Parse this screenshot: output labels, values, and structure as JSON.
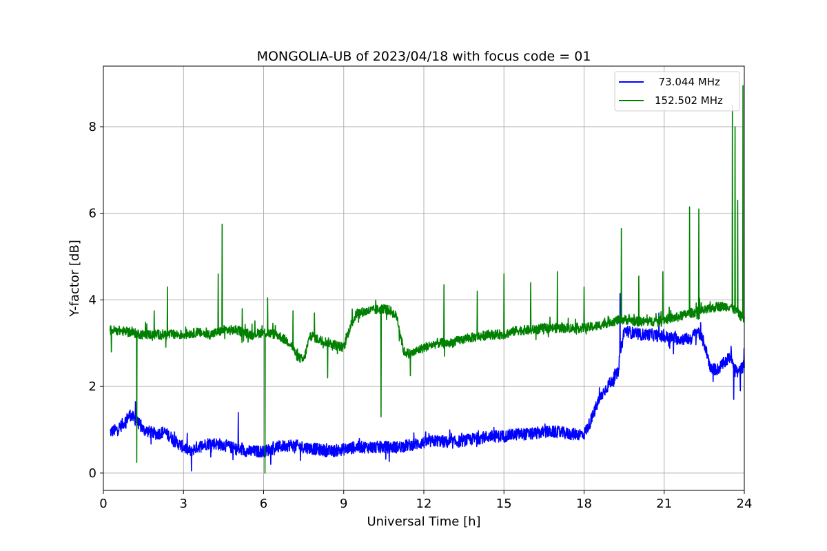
{
  "chart_data": {
    "type": "line",
    "title": "MONGOLIA-UB of 2023/04/18 with focus code = 01",
    "xlabel": "Universal Time [h]",
    "ylabel": "Y-factor [dB]",
    "xlim": [
      0,
      24
    ],
    "ylim": [
      -0.4,
      9.4
    ],
    "xticks": [
      0,
      3,
      6,
      9,
      12,
      15,
      18,
      21,
      24
    ],
    "yticks": [
      0,
      2,
      4,
      6,
      8
    ],
    "xtick_labels": [
      "0",
      "3",
      "6",
      "9",
      "12",
      "15",
      "18",
      "21",
      "24"
    ],
    "ytick_labels": [
      "0",
      "2",
      "4",
      "6",
      "8"
    ],
    "grid": true,
    "legend_position": "top-right",
    "series": [
      {
        "name": "73.044 MHz",
        "legend_label": "  73.044 MHz",
        "color": "#0000ff",
        "x": [
          0.25,
          0.5,
          0.75,
          1.0,
          1.25,
          1.5,
          1.75,
          2.0,
          2.25,
          2.5,
          2.75,
          3.0,
          3.25,
          3.5,
          3.75,
          4.0,
          4.5,
          5.0,
          5.5,
          6.0,
          6.5,
          7.0,
          7.5,
          8.0,
          8.5,
          9.0,
          9.5,
          10.0,
          10.5,
          11.0,
          11.5,
          12.0,
          12.5,
          13.0,
          13.5,
          14.0,
          14.5,
          15.0,
          15.5,
          16.0,
          16.5,
          17.0,
          17.5,
          18.0,
          18.25,
          18.5,
          18.75,
          19.0,
          19.25,
          19.5,
          20.0,
          20.5,
          21.0,
          21.5,
          22.0,
          22.25,
          22.5,
          22.75,
          23.0,
          23.5,
          23.75,
          24.0
        ],
        "values": [
          0.95,
          1.0,
          1.15,
          1.35,
          1.2,
          1.0,
          0.95,
          0.9,
          0.95,
          0.85,
          0.7,
          0.6,
          0.5,
          0.6,
          0.65,
          0.7,
          0.65,
          0.55,
          0.5,
          0.5,
          0.6,
          0.65,
          0.6,
          0.55,
          0.5,
          0.55,
          0.6,
          0.6,
          0.6,
          0.6,
          0.65,
          0.7,
          0.75,
          0.7,
          0.75,
          0.8,
          0.85,
          0.85,
          0.9,
          0.9,
          0.95,
          0.95,
          0.9,
          0.9,
          1.2,
          1.6,
          1.9,
          2.1,
          2.3,
          3.3,
          3.2,
          3.2,
          3.15,
          3.1,
          3.1,
          3.3,
          3.0,
          2.4,
          2.4,
          2.7,
          2.3,
          2.5
        ],
        "spikes": [
          [
            1.2,
            1.65
          ],
          [
            3.3,
            0.05
          ],
          [
            5.05,
            1.4
          ],
          [
            19.35,
            4.15
          ],
          [
            20.8,
            3.7
          ],
          [
            23.6,
            1.7
          ],
          [
            23.85,
            1.9
          ]
        ]
      },
      {
        "name": "152.502 MHz",
        "legend_label": "152.502 MHz",
        "color": "#008000",
        "x": [
          0.25,
          0.5,
          1.0,
          1.5,
          2.0,
          2.5,
          3.0,
          3.5,
          4.0,
          4.5,
          5.0,
          5.5,
          6.0,
          6.5,
          7.0,
          7.25,
          7.5,
          7.75,
          8.0,
          8.5,
          9.0,
          9.25,
          9.5,
          10.0,
          10.5,
          10.75,
          11.0,
          11.25,
          11.5,
          12.0,
          12.5,
          13.0,
          13.5,
          14.0,
          14.5,
          15.0,
          15.5,
          16.0,
          16.5,
          17.0,
          17.5,
          18.0,
          18.5,
          19.0,
          19.5,
          20.0,
          20.5,
          21.0,
          21.5,
          22.0,
          22.5,
          23.0,
          23.5,
          24.0
        ],
        "values": [
          3.3,
          3.3,
          3.25,
          3.2,
          3.2,
          3.2,
          3.2,
          3.25,
          3.2,
          3.3,
          3.3,
          3.2,
          3.25,
          3.2,
          3.0,
          2.7,
          2.6,
          3.2,
          3.1,
          3.0,
          2.9,
          3.4,
          3.7,
          3.75,
          3.8,
          3.75,
          3.6,
          2.8,
          2.75,
          2.9,
          3.0,
          3.0,
          3.1,
          3.15,
          3.2,
          3.2,
          3.3,
          3.3,
          3.35,
          3.35,
          3.35,
          3.35,
          3.4,
          3.5,
          3.55,
          3.5,
          3.5,
          3.55,
          3.6,
          3.7,
          3.75,
          3.85,
          3.85,
          3.55
        ],
        "spikes": [
          [
            0.3,
            2.8
          ],
          [
            1.25,
            0.25
          ],
          [
            1.9,
            3.75
          ],
          [
            2.4,
            4.3
          ],
          [
            4.3,
            4.6
          ],
          [
            4.45,
            5.75
          ],
          [
            5.2,
            3.8
          ],
          [
            6.05,
            0.0
          ],
          [
            6.15,
            4.05
          ],
          [
            7.1,
            3.75
          ],
          [
            7.9,
            3.7
          ],
          [
            8.4,
            2.2
          ],
          [
            10.4,
            1.3
          ],
          [
            11.5,
            2.25
          ],
          [
            12.75,
            4.35
          ],
          [
            14.0,
            4.2
          ],
          [
            15.0,
            4.6
          ],
          [
            16.0,
            4.4
          ],
          [
            17.0,
            4.65
          ],
          [
            18.0,
            4.3
          ],
          [
            19.4,
            5.65
          ],
          [
            20.05,
            4.55
          ],
          [
            20.95,
            4.65
          ],
          [
            21.95,
            6.15
          ],
          [
            22.3,
            6.1
          ],
          [
            23.55,
            8.5
          ],
          [
            23.65,
            8.0
          ],
          [
            23.75,
            6.3
          ],
          [
            23.95,
            8.95
          ]
        ]
      }
    ]
  }
}
